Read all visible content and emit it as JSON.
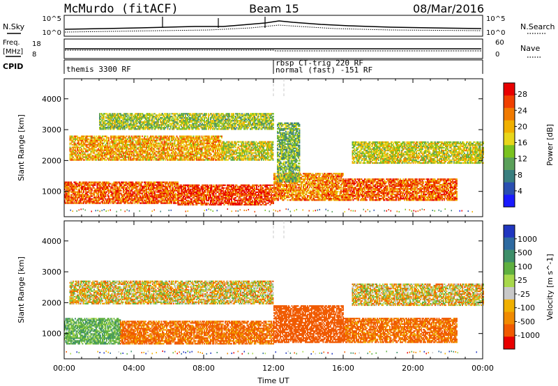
{
  "header": {
    "station": "McMurdo (fitACF)",
    "beam": "Beam 15",
    "date": "08/Mar/2016"
  },
  "noise_panel": {
    "left_label": "N.Sky",
    "right_label": "N.Search",
    "left_ticks": [
      "10^5",
      "10^0"
    ],
    "right_ticks": [
      "10^5",
      "10^0"
    ]
  },
  "freq_panel": {
    "left_label": "Freq.",
    "left_unit": "[MHz]",
    "right_label": "Nave",
    "left_ticks": [
      "18",
      "8"
    ],
    "right_ticks": [
      "60",
      "0"
    ]
  },
  "cpid": {
    "label": "CPID",
    "segments": [
      {
        "start_ut": 0.0,
        "lines": [
          "themis 3300 RF"
        ]
      },
      {
        "start_ut": 12.0,
        "lines": [
          "rbsp CT-trig 220 RF",
          "normal (fast) -151 RF"
        ]
      }
    ]
  },
  "x_axis": {
    "label": "Time UT",
    "ticks": [
      "00:00",
      "04:00",
      "08:00",
      "12:00",
      "16:00",
      "20:00",
      "00:00"
    ],
    "range_hours": [
      0,
      24
    ]
  },
  "chart_data": [
    {
      "type": "heatmap",
      "name": "power",
      "ylabel": "Slant Range [km]",
      "yticks": [
        1000,
        2000,
        3000,
        4000
      ],
      "ylim": [
        180,
        4650
      ],
      "xlim": [
        0,
        24
      ],
      "colorbar": {
        "label": "Power [dB]",
        "ticks": [
          "4",
          "8",
          "12",
          "16",
          "20",
          "24",
          "28"
        ],
        "colors": [
          "#1a1aff",
          "#2a4fb0",
          "#3a7f7f",
          "#5aa05a",
          "#7ac21f",
          "#e8d61a",
          "#f0b000",
          "#f07a00",
          "#f04000",
          "#e80000"
        ]
      },
      "bands": [
        {
          "t0": 0.0,
          "t1": 6.5,
          "r0": 600,
          "r1": 1300,
          "level": 24
        },
        {
          "t0": 6.5,
          "t1": 12.0,
          "r0": 550,
          "r1": 1200,
          "level": 26
        },
        {
          "t0": 12.0,
          "t1": 16.0,
          "r0": 700,
          "r1": 1600,
          "level": 22
        },
        {
          "t0": 16.0,
          "t1": 22.5,
          "r0": 700,
          "r1": 1400,
          "level": 24
        },
        {
          "t0": 0.3,
          "t1": 9.0,
          "r0": 2000,
          "r1": 2800,
          "level": 20
        },
        {
          "t0": 9.0,
          "t1": 12.0,
          "r0": 2000,
          "r1": 2600,
          "level": 16
        },
        {
          "t0": 16.5,
          "t1": 24.0,
          "r0": 1900,
          "r1": 2600,
          "level": 16
        },
        {
          "t0": 2.0,
          "t1": 12.0,
          "r0": 3000,
          "r1": 3500,
          "level": 14
        },
        {
          "t0": 12.2,
          "t1": 13.5,
          "r0": 1300,
          "r1": 3200,
          "level": 12
        }
      ]
    },
    {
      "type": "heatmap",
      "name": "velocity",
      "ylabel": "Slant Range [km]",
      "yticks": [
        1000,
        2000,
        3000,
        4000
      ],
      "ylim": [
        180,
        4650
      ],
      "xlim": [
        0,
        24
      ],
      "colorbar": {
        "label": "Velocity [m s^-1]",
        "ticks": [
          "1000",
          "500",
          "100",
          "25",
          "-25",
          "-100",
          "-500",
          "-1000"
        ],
        "colors": [
          "#2036c0",
          "#2e6aa0",
          "#3e8f6a",
          "#5fb040",
          "#a8d84c",
          "#c8c8c8",
          "#f0b000",
          "#f08a00",
          "#f05a00",
          "#e80000"
        ]
      },
      "bands": [
        {
          "t0": 0.0,
          "t1": 3.2,
          "r0": 650,
          "r1": 1500,
          "level": 200
        },
        {
          "t0": 3.2,
          "t1": 12.0,
          "r0": 650,
          "r1": 1400,
          "level": -150
        },
        {
          "t0": 12.0,
          "t1": 16.0,
          "r0": 700,
          "r1": 1900,
          "level": -300
        },
        {
          "t0": 16.0,
          "t1": 22.5,
          "r0": 700,
          "r1": 1500,
          "level": -150
        },
        {
          "t0": 0.3,
          "t1": 12.0,
          "r0": 1950,
          "r1": 2700,
          "level": 0
        },
        {
          "t0": 16.5,
          "t1": 24.0,
          "r0": 1900,
          "r1": 2600,
          "level": 0
        }
      ]
    }
  ]
}
